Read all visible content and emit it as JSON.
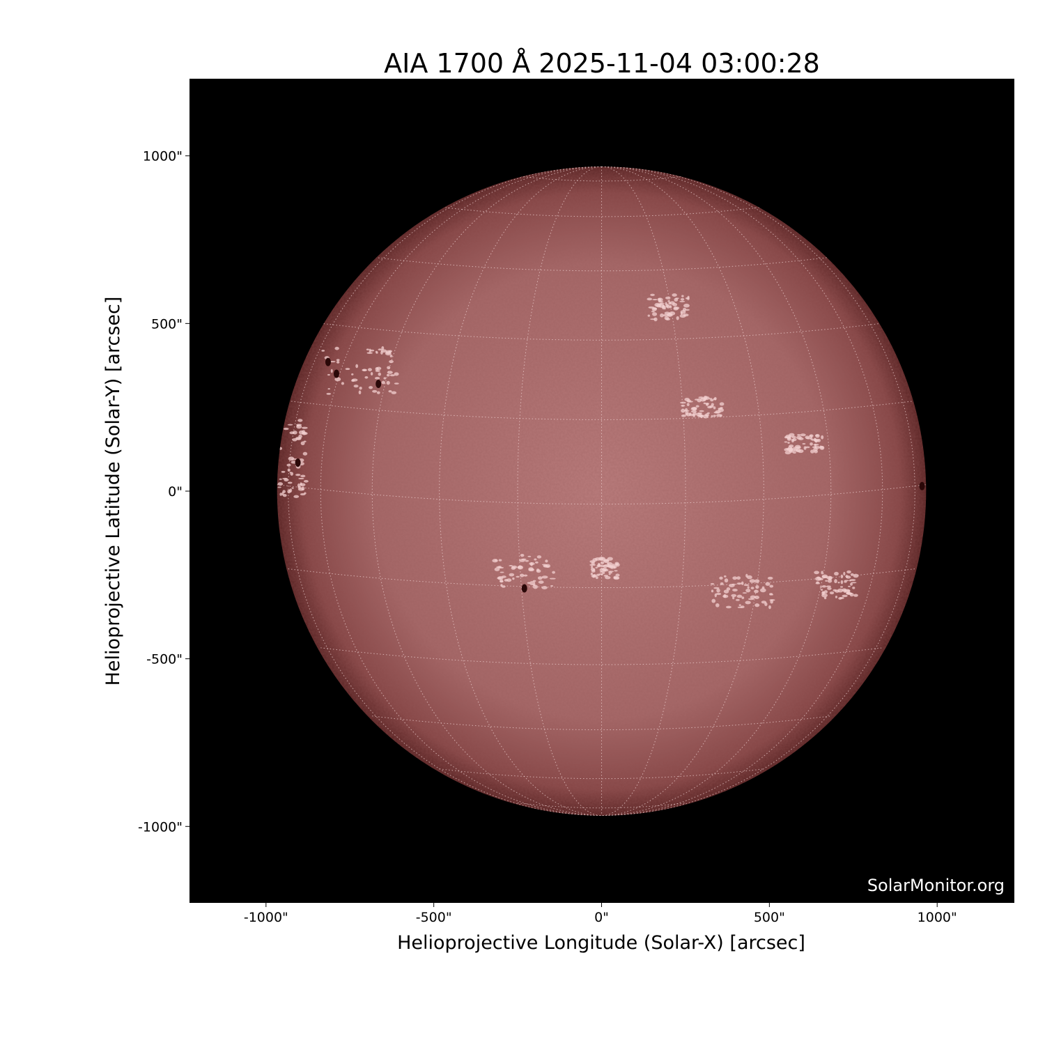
{
  "chart_data": {
    "type": "image",
    "title": "AIA 1700 Å 2025-11-04 03:00:28",
    "xlabel": "Helioprojective Longitude (Solar-X) [arcsec]",
    "ylabel": "Helioprojective Latitude (Solar-Y) [arcsec]",
    "xlim": [
      -1228,
      1230
    ],
    "ylim": [
      -1228,
      1230
    ],
    "x_ticks": [
      -1000,
      -500,
      0,
      500,
      1000
    ],
    "y_ticks": [
      -1000,
      -500,
      0,
      500,
      1000
    ],
    "x_tick_labels": [
      "-1000\"",
      "-500\"",
      "0\"",
      "500\"",
      "1000\""
    ],
    "y_tick_labels": [
      "-1000\"",
      "-500\"",
      "0\"",
      "500\"",
      "1000\""
    ],
    "solar_radius_arcsec": 967,
    "grid": "heliographic, dotted, 15° spacing",
    "colormap": "sdoaia1700",
    "colors": {
      "background": "#000000",
      "disk_center": "#b87878",
      "disk_limb": "#5a2424",
      "plage": "#f0cccc",
      "sunspot": "#2a0808"
    },
    "watermark": "SolarMonitor.org"
  }
}
